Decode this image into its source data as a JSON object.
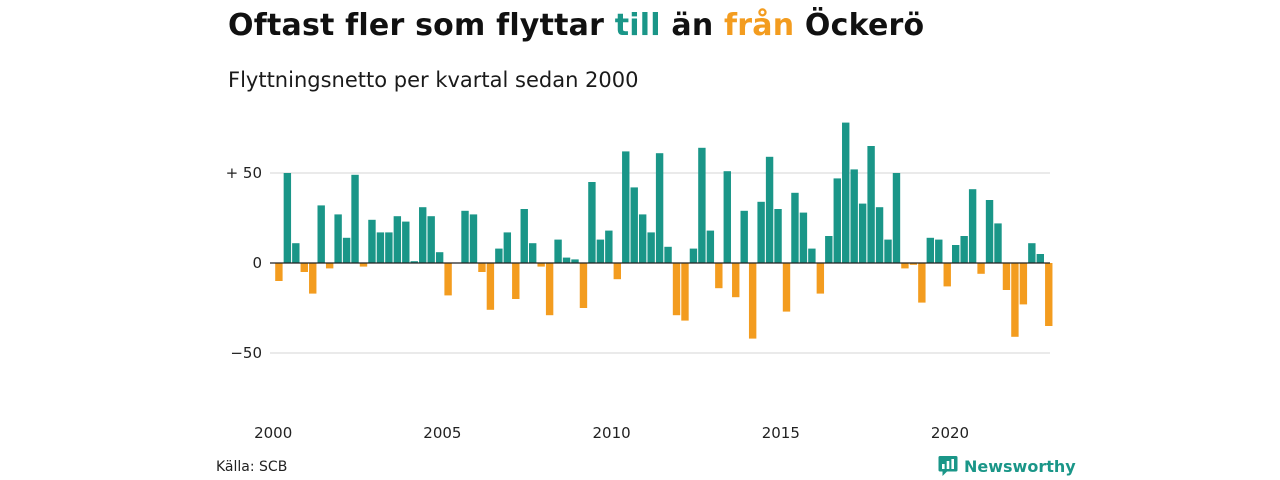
{
  "title": {
    "part1": "Oftast fler som flyttar ",
    "till": "till",
    "part2": " än ",
    "fran": "från",
    "part3": " Öckerö"
  },
  "subtitle": "Flyttningsnetto per kvartal sedan 2000",
  "source": "Källa: SCB",
  "brand": {
    "name": "Newsworthy",
    "icon": "newsworthy-logo-icon"
  },
  "colors": {
    "positive": "#1a9688",
    "negative": "#f39c1f",
    "grid": "#dddddd",
    "zero": "#222222"
  },
  "chart_data": {
    "type": "bar",
    "title": "Oftast fler som flyttar till än från Öckerö",
    "subtitle": "Flyttningsnetto per kvartal sedan 2000",
    "xlabel": "",
    "ylabel": "",
    "start_year": 2000,
    "periods_per_year": 4,
    "ylim": [
      -70,
      80
    ],
    "y_ticks": [
      {
        "value": 50,
        "label": "+ 50"
      },
      {
        "value": 0,
        "label": "0"
      },
      {
        "value": -50,
        "label": "−50"
      }
    ],
    "x_ticks": [
      "2000",
      "2005",
      "2010",
      "2015",
      "2020"
    ],
    "grid": true,
    "legend": "none",
    "values": [
      -10,
      50,
      11,
      -5,
      -17,
      32,
      -3,
      27,
      14,
      49,
      -2,
      24,
      17,
      17,
      26,
      23,
      1,
      31,
      26,
      6,
      -18,
      0,
      29,
      27,
      -5,
      -26,
      8,
      17,
      -20,
      30,
      11,
      -2,
      -29,
      13,
      3,
      2,
      -25,
      45,
      13,
      18,
      -9,
      62,
      42,
      27,
      17,
      61,
      9,
      -29,
      -32,
      8,
      64,
      18,
      -14,
      51,
      -19,
      29,
      -42,
      34,
      59,
      30,
      -27,
      39,
      28,
      8,
      -17,
      15,
      47,
      78,
      52,
      33,
      65,
      31,
      13,
      50,
      -3,
      -1,
      -22,
      14,
      13,
      -13,
      10,
      15,
      41,
      -6,
      35,
      22,
      -15,
      -41,
      -23,
      11,
      5,
      -35
    ]
  }
}
